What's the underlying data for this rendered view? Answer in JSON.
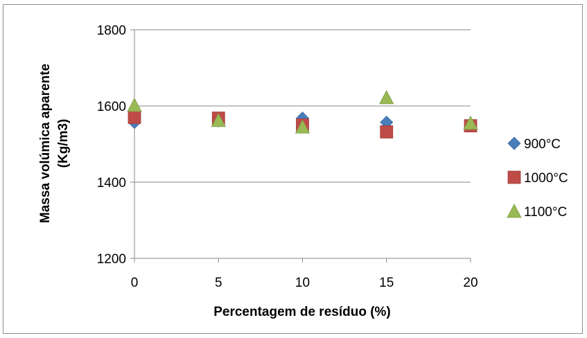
{
  "chart_data": {
    "type": "scatter",
    "title": "",
    "xlabel": "Percentagem de resíduo (%)",
    "ylabel_line1": "Massa volúmica aparente",
    "ylabel_line2": "(Kg/m3)",
    "xlim": [
      0,
      20
    ],
    "ylim": [
      1200,
      1800
    ],
    "x_ticks": [
      0,
      5,
      10,
      15,
      20
    ],
    "y_ticks": [
      1200,
      1400,
      1600,
      1800
    ],
    "grid": "horizontal",
    "legend_position": "right",
    "series": [
      {
        "name": "900°C",
        "marker": "diamond",
        "color": "#4a7ebb",
        "x": [
          0,
          5,
          10,
          15,
          20
        ],
        "y": [
          1557,
          1561,
          1568,
          1557,
          1548
        ]
      },
      {
        "name": "1000°C",
        "marker": "square",
        "color": "#be4b48",
        "x": [
          0,
          5,
          10,
          15,
          20
        ],
        "y": [
          1570,
          1568,
          1550,
          1532,
          1548
        ]
      },
      {
        "name": "1100°C",
        "marker": "triangle",
        "color": "#98b954",
        "x": [
          0,
          5,
          10,
          15,
          20
        ],
        "y": [
          1602,
          1562,
          1545,
          1622,
          1555
        ]
      }
    ]
  }
}
